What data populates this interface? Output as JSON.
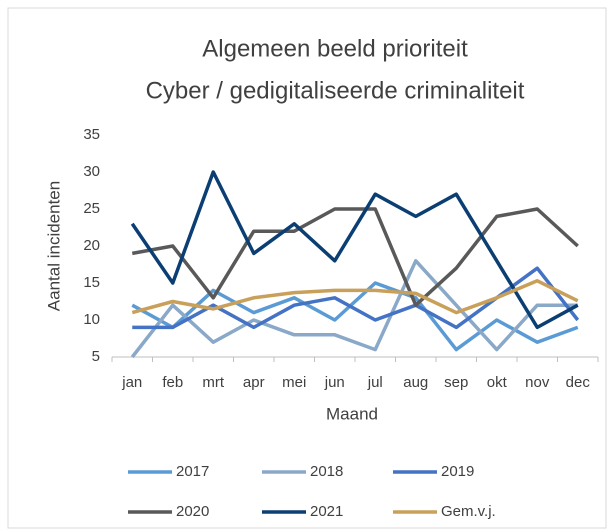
{
  "chart_data": {
    "type": "line",
    "title": [
      "Algemeen beeld prioriteit",
      "Cyber / gedigitaliseerde criminaliteit"
    ],
    "xlabel": "Maand",
    "ylabel": "Aantal incidenten",
    "categories": [
      "jan",
      "feb",
      "mrt",
      "apr",
      "mei",
      "jun",
      "jul",
      "aug",
      "sep",
      "okt",
      "nov",
      "dec"
    ],
    "ylim": [
      5,
      35
    ],
    "yticks": [
      5,
      10,
      15,
      20,
      25,
      30,
      35
    ],
    "grid": false,
    "legend": "bottom",
    "series": [
      {
        "name": "2017",
        "color": "#5b9bd5",
        "values": [
          12,
          9,
          14,
          11,
          13,
          10,
          15,
          13,
          6,
          10,
          7,
          9
        ]
      },
      {
        "name": "2018",
        "color": "#8aa8c8",
        "values": [
          5,
          12,
          7,
          10,
          8,
          8,
          6,
          18,
          12,
          6,
          12,
          12
        ]
      },
      {
        "name": "2019",
        "color": "#4472c4",
        "values": [
          9,
          9,
          12,
          9,
          12,
          13,
          10,
          12,
          9,
          13,
          17,
          10
        ]
      },
      {
        "name": "2020",
        "color": "#595959",
        "values": [
          19,
          20,
          13,
          22,
          22,
          25,
          25,
          12,
          17,
          24,
          25,
          20
        ]
      },
      {
        "name": "2021",
        "color": "#0b3f73",
        "values": [
          23,
          15,
          30,
          19,
          23,
          18,
          27,
          24,
          27,
          18,
          9,
          12
        ]
      },
      {
        "name": "Gem.v.j.",
        "color": "#c9a05a",
        "values": [
          11,
          12.5,
          11.5,
          13,
          13.7,
          14,
          14,
          13.6,
          11,
          13,
          15.3,
          12.6
        ]
      }
    ]
  }
}
